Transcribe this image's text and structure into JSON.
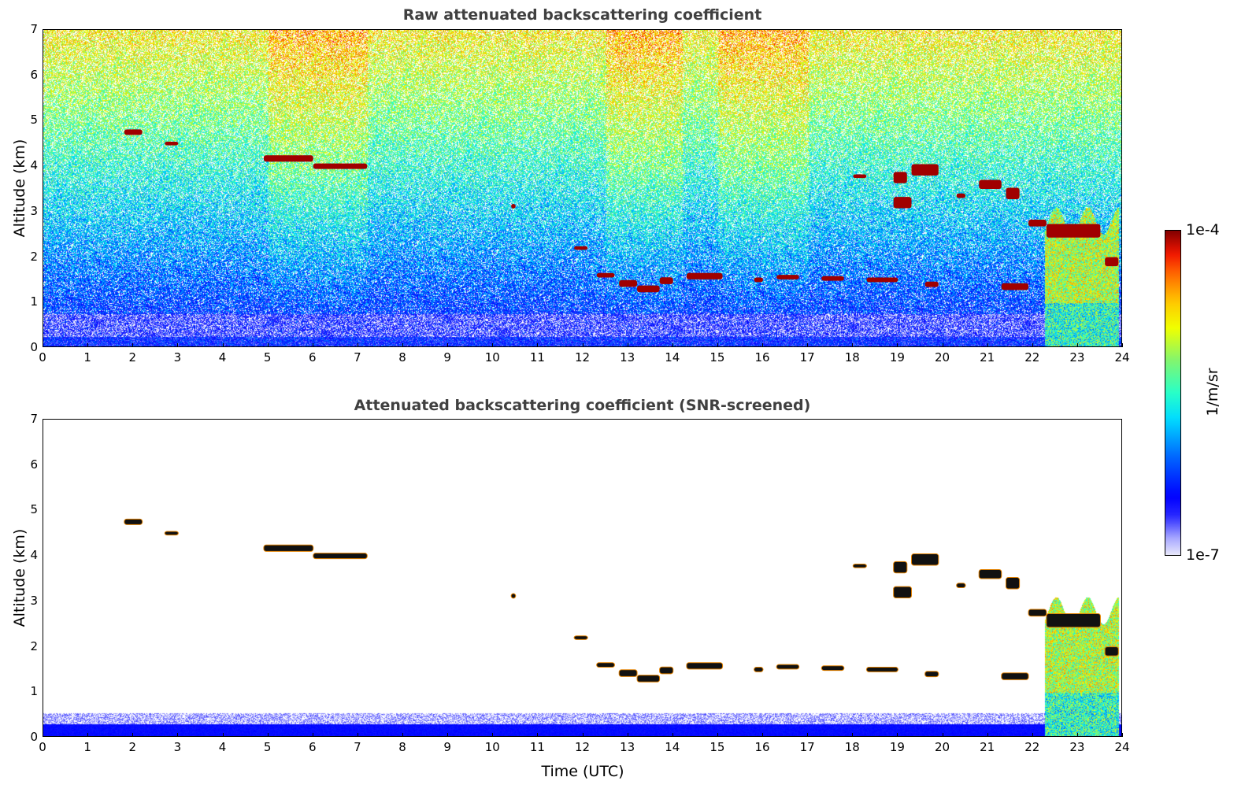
{
  "chart_data": [
    {
      "type": "heatmap",
      "title": "Raw attenuated backscattering coefficient",
      "xlabel": "",
      "ylabel": "Altitude (km)",
      "xlim": [
        0,
        24
      ],
      "ylim": [
        0,
        7
      ],
      "xticks": [
        "0",
        "1",
        "2",
        "3",
        "4",
        "5",
        "6",
        "7",
        "8",
        "9",
        "10",
        "11",
        "12",
        "13",
        "14",
        "15",
        "16",
        "17",
        "18",
        "19",
        "20",
        "21",
        "22",
        "23",
        "24"
      ],
      "yticks": [
        "0",
        "1",
        "2",
        "3",
        "4",
        "5",
        "6",
        "7"
      ],
      "screened": false
    },
    {
      "type": "heatmap",
      "title": "Attenuated backscattering coefficient (SNR-screened)",
      "xlabel": "Time (UTC)",
      "ylabel": "Altitude (km)",
      "xlim": [
        0,
        24
      ],
      "ylim": [
        0,
        7
      ],
      "xticks": [
        "0",
        "1",
        "2",
        "3",
        "4",
        "5",
        "6",
        "7",
        "8",
        "9",
        "10",
        "11",
        "12",
        "13",
        "14",
        "15",
        "16",
        "17",
        "18",
        "19",
        "20",
        "21",
        "22",
        "23",
        "24"
      ],
      "yticks": [
        "0",
        "1",
        "2",
        "3",
        "4",
        "5",
        "6",
        "7"
      ],
      "screened": true
    }
  ],
  "cloud_layers": [
    {
      "t0": 1.8,
      "t1": 2.2,
      "alt": 4.75,
      "dz": 0.12
    },
    {
      "t0": 2.7,
      "t1": 3.0,
      "alt": 4.5,
      "dz": 0.08
    },
    {
      "t0": 4.9,
      "t1": 6.0,
      "alt": 4.17,
      "dz": 0.14
    },
    {
      "t0": 6.0,
      "t1": 7.2,
      "alt": 4.0,
      "dz": 0.12
    },
    {
      "t0": 10.4,
      "t1": 10.5,
      "alt": 3.12,
      "dz": 0.1
    },
    {
      "t0": 11.8,
      "t1": 12.1,
      "alt": 2.2,
      "dz": 0.08
    },
    {
      "t0": 12.3,
      "t1": 12.7,
      "alt": 1.6,
      "dz": 0.1
    },
    {
      "t0": 12.8,
      "t1": 13.2,
      "alt": 1.42,
      "dz": 0.15
    },
    {
      "t0": 13.2,
      "t1": 13.7,
      "alt": 1.3,
      "dz": 0.15
    },
    {
      "t0": 13.7,
      "t1": 14.0,
      "alt": 1.48,
      "dz": 0.15
    },
    {
      "t0": 14.3,
      "t1": 15.1,
      "alt": 1.58,
      "dz": 0.14
    },
    {
      "t0": 15.8,
      "t1": 16.0,
      "alt": 1.5,
      "dz": 0.1
    },
    {
      "t0": 16.3,
      "t1": 16.8,
      "alt": 1.56,
      "dz": 0.1
    },
    {
      "t0": 17.3,
      "t1": 17.8,
      "alt": 1.53,
      "dz": 0.1
    },
    {
      "t0": 18.3,
      "t1": 19.0,
      "alt": 1.5,
      "dz": 0.1
    },
    {
      "t0": 19.6,
      "t1": 19.9,
      "alt": 1.4,
      "dz": 0.12
    },
    {
      "t0": 18.0,
      "t1": 18.3,
      "alt": 3.78,
      "dz": 0.08
    },
    {
      "t0": 18.9,
      "t1": 19.2,
      "alt": 3.75,
      "dz": 0.25
    },
    {
      "t0": 19.3,
      "t1": 19.9,
      "alt": 3.92,
      "dz": 0.25
    },
    {
      "t0": 18.9,
      "t1": 19.3,
      "alt": 3.2,
      "dz": 0.25
    },
    {
      "t0": 20.3,
      "t1": 20.5,
      "alt": 3.35,
      "dz": 0.1
    },
    {
      "t0": 20.8,
      "t1": 21.3,
      "alt": 3.6,
      "dz": 0.2
    },
    {
      "t0": 21.4,
      "t1": 21.7,
      "alt": 3.4,
      "dz": 0.25
    },
    {
      "t0": 21.3,
      "t1": 21.9,
      "alt": 1.35,
      "dz": 0.15
    },
    {
      "t0": 21.9,
      "t1": 22.3,
      "alt": 2.75,
      "dz": 0.15
    },
    {
      "t0": 22.3,
      "t1": 23.5,
      "alt": 2.58,
      "dz": 0.3
    },
    {
      "t0": 23.6,
      "t1": 23.9,
      "alt": 1.9,
      "dz": 0.2
    }
  ],
  "precipitation": {
    "t0": 22.25,
    "t1": 23.9,
    "top_km": 2.8
  },
  "colorbar": {
    "label": "1/m/sr",
    "min_label": "1e-7",
    "max_label": "1e-4",
    "scale": "log",
    "range": [
      1e-07,
      0.0001
    ]
  }
}
